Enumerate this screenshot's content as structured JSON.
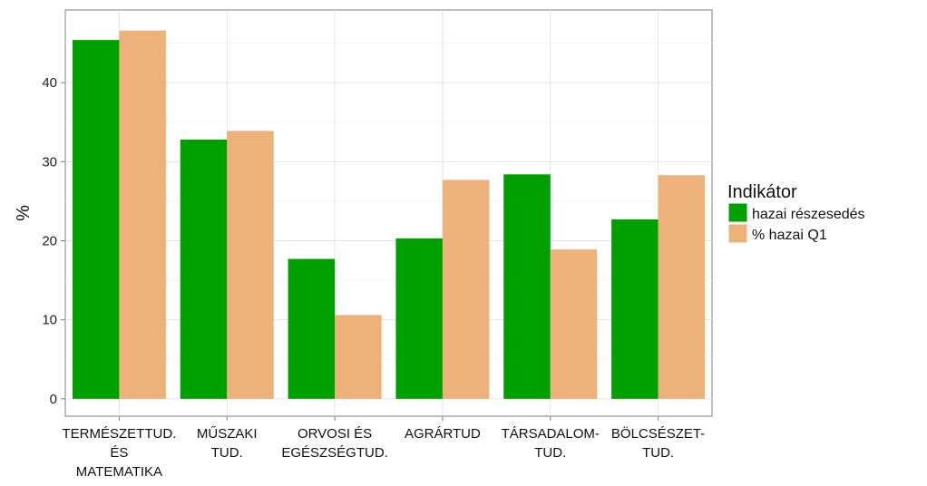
{
  "chart_data": {
    "type": "bar",
    "categories": [
      [
        "TERMÉSZETTUD.",
        "ÉS",
        "MATEMATIKA"
      ],
      [
        "MŰSZAKI",
        "TUD."
      ],
      [
        "ORVOSI ÉS",
        "EGÉSZSÉGTUD."
      ],
      [
        "AGRÁRTUD"
      ],
      [
        "TÁRSADALOM-",
        "TUD."
      ],
      [
        "BÖLCSÉSZET-",
        "TUD."
      ]
    ],
    "series": [
      {
        "name": "hazai részesedés",
        "color": "#00a000",
        "values": [
          45.4,
          32.8,
          17.7,
          20.3,
          28.4,
          22.7
        ]
      },
      {
        "name": "% hazai Q1",
        "color": "#ecb27a",
        "values": [
          46.6,
          33.9,
          10.6,
          27.7,
          18.9,
          28.3
        ]
      }
    ],
    "ylabel": "%",
    "xlabel": "",
    "ylim": [
      -2.2,
      49.2
    ],
    "yticks": [
      0,
      10,
      20,
      30,
      40
    ],
    "legend_title": "Indikátor",
    "legend_position": "right",
    "grid": true
  }
}
